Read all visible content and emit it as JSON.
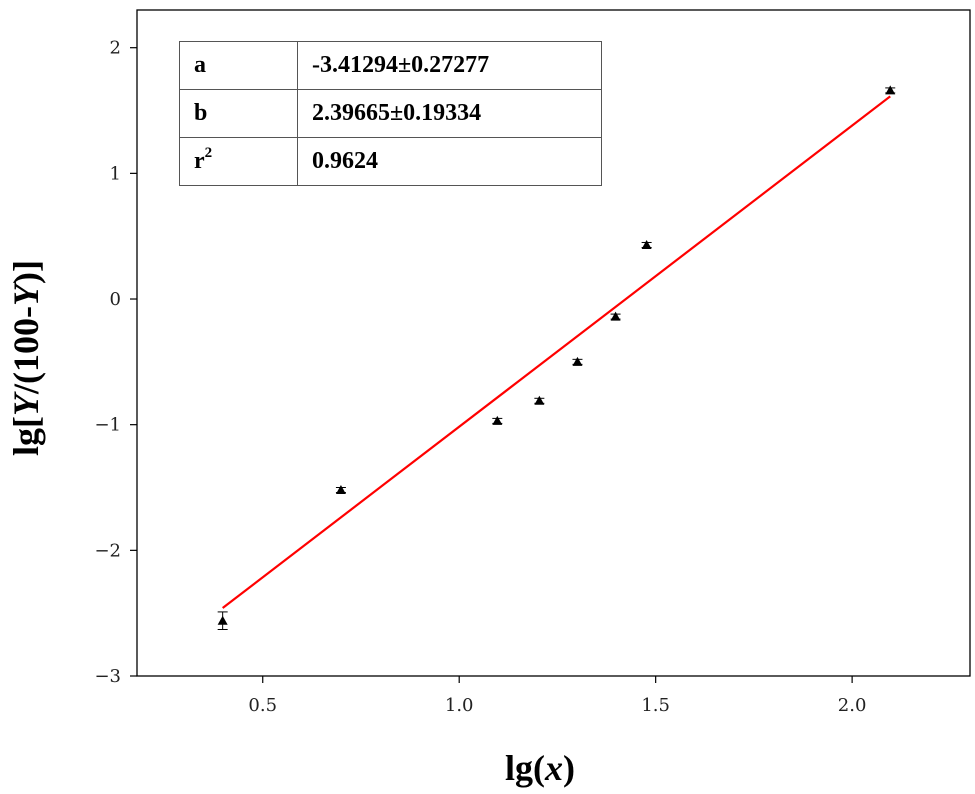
{
  "chart_data": {
    "type": "scatter",
    "xlabel_main": "lg(",
    "xlabel_var": "x",
    "xlabel_end": ")",
    "ylabel_main": "lg[",
    "ylabel_var1": "Y",
    "ylabel_mid": "/(100-",
    "ylabel_var2": "Y",
    "ylabel_end": ")]",
    "xlim": [
      0.18,
      2.3
    ],
    "ylim": [
      -3.0,
      2.3
    ],
    "x_ticks": [
      0.5,
      1.0,
      1.5,
      2.0
    ],
    "x_tick_labels": [
      "0.5",
      "1.0",
      "1.5",
      "2.0"
    ],
    "y_ticks": [
      -3,
      -2,
      -1,
      0,
      1,
      2
    ],
    "y_tick_labels": [
      "−3",
      "−2",
      "−1",
      "0",
      "1",
      "2"
    ],
    "grid": false,
    "series": [
      {
        "points": [
          {
            "x": 0.398,
            "y": -2.56,
            "err": 0.07
          },
          {
            "x": 0.699,
            "y": -1.52,
            "err": 0.02
          },
          {
            "x": 1.097,
            "y": -0.97,
            "err": 0.02
          },
          {
            "x": 1.204,
            "y": -0.81,
            "err": 0.02
          },
          {
            "x": 1.301,
            "y": -0.5,
            "err": 0.02
          },
          {
            "x": 1.398,
            "y": -0.14,
            "err": 0.02
          },
          {
            "x": 1.477,
            "y": 0.43,
            "err": 0.02
          },
          {
            "x": 2.097,
            "y": 1.66,
            "err": 0.02
          }
        ],
        "marker_color": "#000000"
      }
    ],
    "fit_line": {
      "x_range": [
        0.398,
        2.097
      ],
      "intercept": -3.41294,
      "slope": 2.39665,
      "color": "#ff0000"
    },
    "stats_table": [
      {
        "key": "a",
        "value": "-3.41294±0.27277"
      },
      {
        "key": "b",
        "value": "2.39665±0.19334"
      },
      {
        "key": "r",
        "sup": "2",
        "value": "0.9624"
      }
    ]
  }
}
